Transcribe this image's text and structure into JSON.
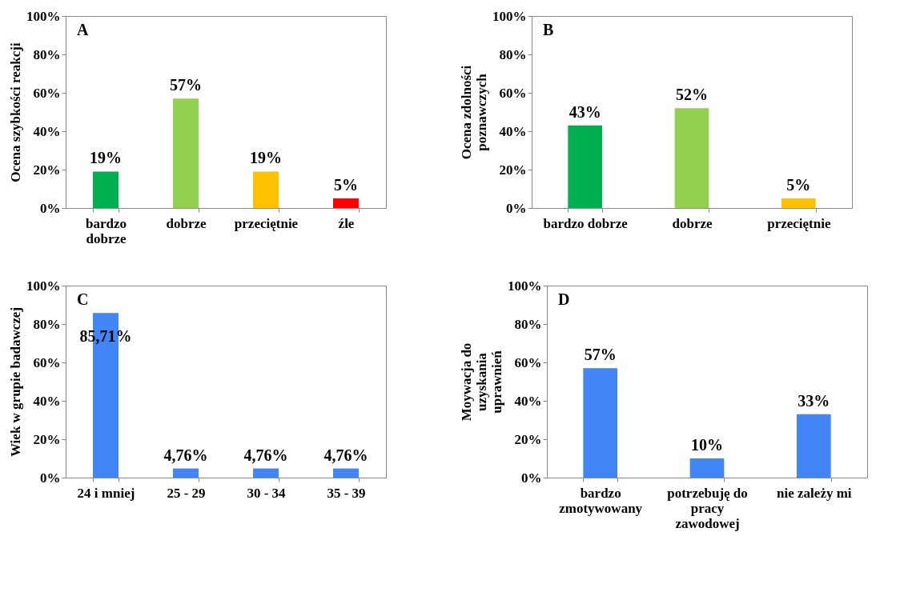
{
  "chart_data": [
    {
      "type": "bar",
      "title": "A",
      "ylabel": "Ocena szybkości reakcji",
      "categories": [
        "bardzo dobrze",
        "dobrze",
        "przeciętnie",
        "źle"
      ],
      "values": [
        19,
        57,
        19,
        5
      ],
      "value_labels": [
        "19%",
        "57%",
        "19%",
        "5%"
      ],
      "colors": [
        "#00b050",
        "#92d050",
        "#ffc000",
        "#ff0000"
      ],
      "ylim": [
        0,
        100
      ],
      "yticks": [
        {
          "value": 0,
          "label": "0%"
        },
        {
          "value": 20,
          "label": "20%"
        },
        {
          "value": 40,
          "label": "40%"
        },
        {
          "value": 60,
          "label": "60%"
        },
        {
          "value": 80,
          "label": "80%"
        },
        {
          "value": 100,
          "label": "100%"
        }
      ],
      "grid": false
    },
    {
      "type": "bar",
      "title": "B",
      "ylabel": "Ocena zdolności poznawczych",
      "categories": [
        "bardzo dobrze",
        "dobrze",
        "przeciętnie"
      ],
      "values": [
        43,
        52,
        5
      ],
      "value_labels": [
        "43%",
        "52%",
        "5%"
      ],
      "colors": [
        "#00b050",
        "#92d050",
        "#ffc000"
      ],
      "ylim": [
        0,
        100
      ],
      "yticks": [
        {
          "value": 0,
          "label": "0%"
        },
        {
          "value": 20,
          "label": "20%"
        },
        {
          "value": 40,
          "label": "40%"
        },
        {
          "value": 60,
          "label": "60%"
        },
        {
          "value": 80,
          "label": "80%"
        },
        {
          "value": 100,
          "label": "100%"
        }
      ],
      "grid": false
    },
    {
      "type": "bar",
      "title": "C",
      "ylabel": "Wiek w grupie badawczej",
      "categories": [
        "24 i mniej",
        "25 - 29",
        "30 - 34",
        "35 - 39"
      ],
      "values": [
        85.71,
        4.76,
        4.76,
        4.76
      ],
      "value_labels": [
        "85,71%",
        "4,76%",
        "4,76%",
        "4,76%"
      ],
      "colors": [
        "#4285f4",
        "#4285f4",
        "#4285f4",
        "#4285f4"
      ],
      "ylim": [
        0,
        100
      ],
      "yticks": [
        {
          "value": 0,
          "label": "0%"
        },
        {
          "value": 20,
          "label": "20%"
        },
        {
          "value": 40,
          "label": "40%"
        },
        {
          "value": 60,
          "label": "60%"
        },
        {
          "value": 80,
          "label": "80%"
        },
        {
          "value": 100,
          "label": "100%"
        }
      ],
      "grid": false
    },
    {
      "type": "bar",
      "title": "D",
      "ylabel": "Moywacja do uzyskania uprawnień",
      "categories": [
        "bardzo zmotywowany",
        "potrzebuję do pracy zawodowej",
        "nie zależy mi"
      ],
      "values": [
        57,
        10,
        33
      ],
      "value_labels": [
        "57%",
        "10%",
        "33%"
      ],
      "colors": [
        "#4285f4",
        "#4285f4",
        "#4285f4"
      ],
      "ylim": [
        0,
        100
      ],
      "yticks": [
        {
          "value": 0,
          "label": "0%"
        },
        {
          "value": 20,
          "label": "20%"
        },
        {
          "value": 40,
          "label": "40%"
        },
        {
          "value": 60,
          "label": "60%"
        },
        {
          "value": 80,
          "label": "80%"
        },
        {
          "value": 100,
          "label": "100%"
        }
      ],
      "grid": false
    }
  ]
}
